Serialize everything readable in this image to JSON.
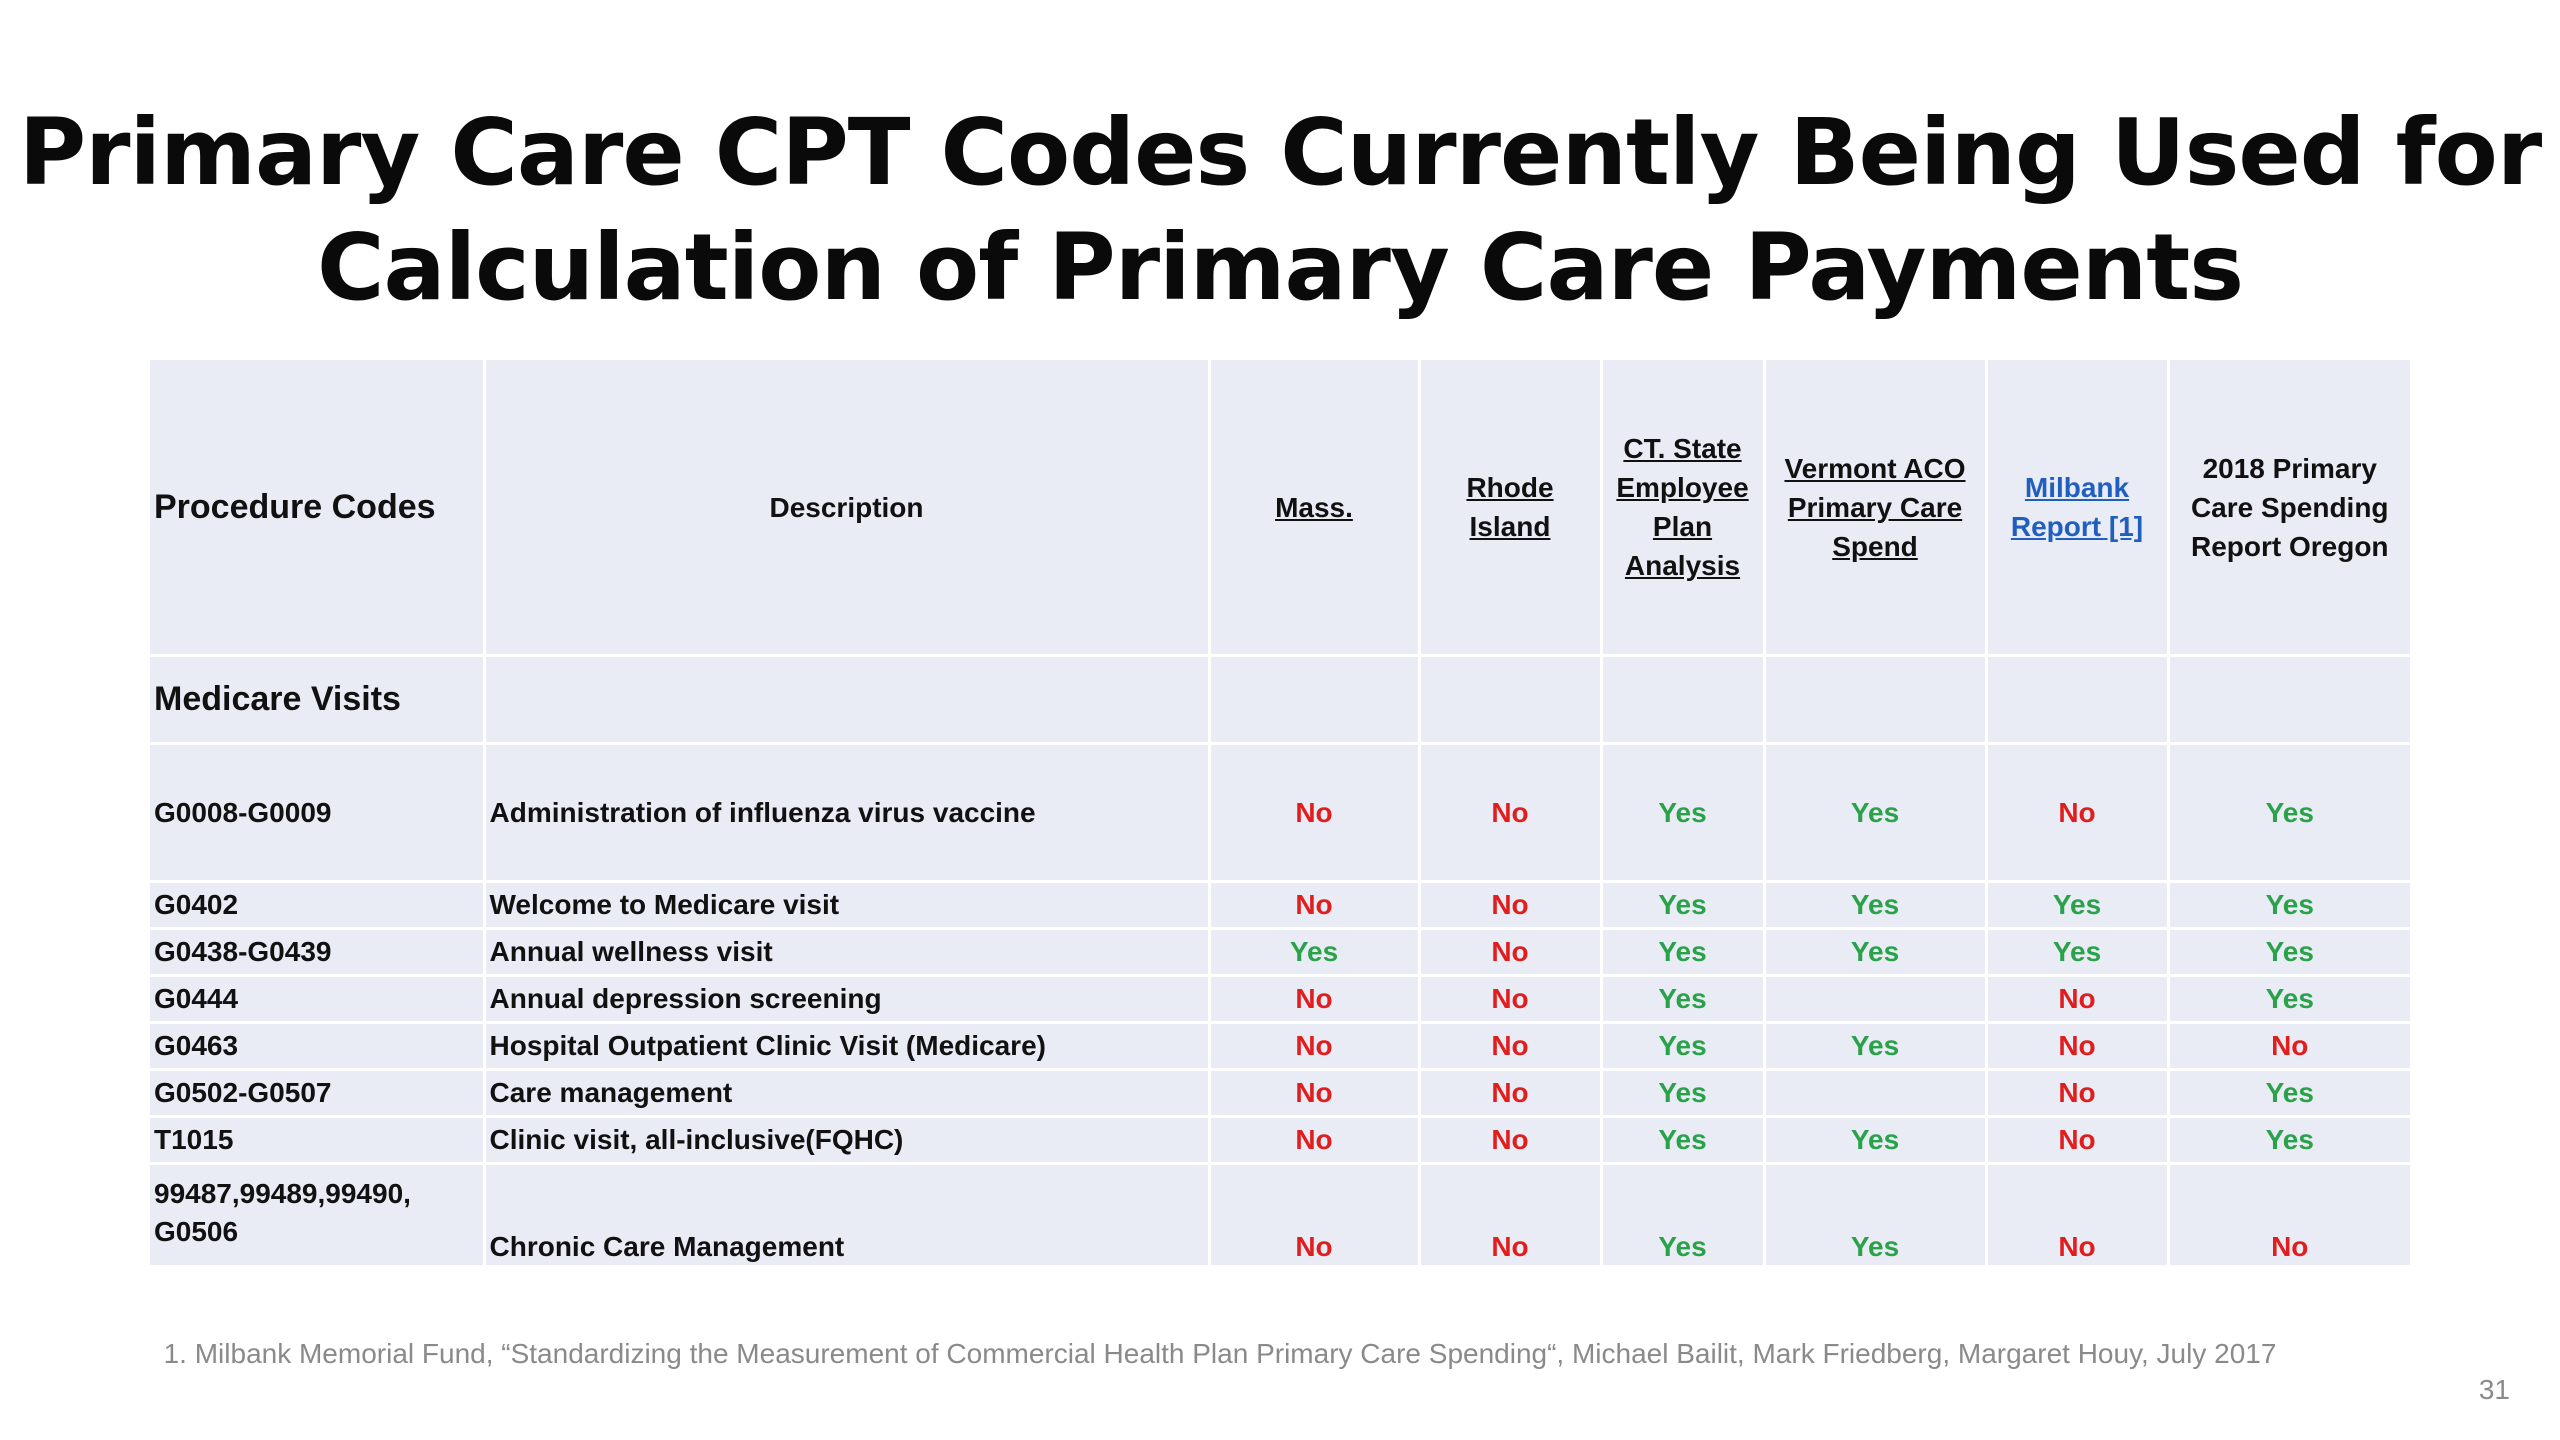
{
  "slide": {
    "title_line1": "Primary Care CPT Codes Currently Being Used for",
    "title_line2": "Calculation of Primary Care Payments",
    "footnote": "1. Milbank Memorial Fund, “Standardizing the Measurement of Commercial Health Plan Primary Care Spending“, Michael Bailit, Mark Friedberg, Margaret Houy, July 2017",
    "page_number": "31"
  },
  "table": {
    "headers": {
      "procedure_codes": "Procedure Codes",
      "description": "Description",
      "mass": "Mass.",
      "rhode_island": "Rhode Island",
      "ct_state": "CT. State Employee Plan Analysis",
      "vermont": "Vermont ACO Primary Care Spend",
      "milbank": "Milbank Report [1]",
      "oregon": "2018 Primary Care Spending Report Oregon"
    },
    "section_label": "Medicare Visits",
    "rows": [
      {
        "code": "G0008-G0009",
        "description": "Administration of influenza virus vaccine",
        "mass": "No",
        "rhode_island": "No",
        "ct_state": "Yes",
        "vermont": "Yes",
        "milbank": "No",
        "oregon": "Yes"
      },
      {
        "code": "G0402",
        "description": "Welcome to Medicare visit",
        "mass": "No",
        "rhode_island": "No",
        "ct_state": "Yes",
        "vermont": "Yes",
        "milbank": "Yes",
        "oregon": "Yes"
      },
      {
        "code": "G0438-G0439",
        "description": "Annual wellness visit",
        "mass": "Yes",
        "rhode_island": "No",
        "ct_state": "Yes",
        "vermont": "Yes",
        "milbank": "Yes",
        "oregon": "Yes"
      },
      {
        "code": "G0444",
        "description": "Annual depression screening",
        "mass": "No",
        "rhode_island": "No",
        "ct_state": "Yes",
        "vermont": "",
        "milbank": "No",
        "oregon": "Yes"
      },
      {
        "code": "G0463",
        "description": "Hospital Outpatient Clinic Visit (Medicare)",
        "mass": "No",
        "rhode_island": "No",
        "ct_state": "Yes",
        "vermont": "Yes",
        "milbank": "No",
        "oregon": "No"
      },
      {
        "code": "G0502-G0507",
        "description": "Care management",
        "mass": "No",
        "rhode_island": "No",
        "ct_state": "Yes",
        "vermont": "",
        "milbank": "No",
        "oregon": "Yes"
      },
      {
        "code": "T1015",
        "description": "Clinic visit, all-inclusive(FQHC)",
        "mass": "No",
        "rhode_island": "No",
        "ct_state": "Yes",
        "vermont": "Yes",
        "milbank": "No",
        "oregon": "Yes"
      },
      {
        "code": "99487,99489,99490, G0506",
        "description": "Chronic Care Management",
        "mass": "No",
        "rhode_island": "No",
        "ct_state": "Yes",
        "vermont": "Yes",
        "milbank": "No",
        "oregon": "No"
      }
    ]
  },
  "colors": {
    "yes": "#2aa24a",
    "no": "#e01e1e",
    "table_background": "#e9ebf5",
    "link": "#1f5fbf"
  }
}
